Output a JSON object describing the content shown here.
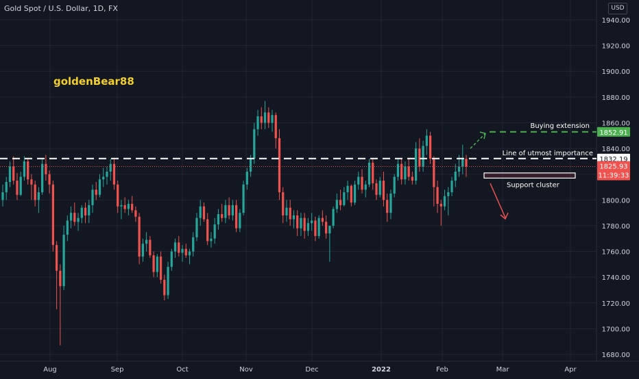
{
  "header": {
    "symbol_title": "Gold Spot / U.S. Dollar, 1D, FX",
    "currency": "USD"
  },
  "watermark": "goldenBear88",
  "colors": {
    "background": "#131722",
    "grid": "#232632",
    "bull": "#26a69a",
    "bear": "#ef5350",
    "text": "#d1d4dc",
    "white_line": "#ffffff",
    "green_line": "#4caf50",
    "watermark": "#f2d027",
    "arrow_red": "#ef5350",
    "arrow_green": "#4caf50"
  },
  "chart_data": {
    "type": "candlestick",
    "title": "Gold Spot / U.S. Dollar, 1D, FX",
    "y_axis_ticks": [
      "1940.00",
      "1920.00",
      "1900.00",
      "1880.00",
      "1860.00",
      "1840.00",
      "1820.00",
      "1800.00",
      "1780.00",
      "1760.00",
      "1740.00",
      "1720.00",
      "1700.00",
      "1680.00"
    ],
    "x_axis_ticks": [
      "Aug",
      "Sep",
      "Oct",
      "Nov",
      "Dec",
      "2022",
      "Feb",
      "Mar",
      "Apr"
    ],
    "ylim": [
      1675,
      1950
    ],
    "grid": true,
    "candles_ohlc": [
      [
        1800,
        1812,
        1795,
        1806
      ],
      [
        1806,
        1818,
        1800,
        1814
      ],
      [
        1814,
        1830,
        1810,
        1826
      ],
      [
        1826,
        1834,
        1812,
        1815
      ],
      [
        1815,
        1821,
        1800,
        1804
      ],
      [
        1804,
        1822,
        1803,
        1818
      ],
      [
        1818,
        1834,
        1815,
        1830
      ],
      [
        1830,
        1832,
        1812,
        1816
      ],
      [
        1816,
        1820,
        1800,
        1812
      ],
      [
        1812,
        1815,
        1795,
        1800
      ],
      [
        1800,
        1810,
        1790,
        1806
      ],
      [
        1806,
        1832,
        1804,
        1828
      ],
      [
        1828,
        1835,
        1815,
        1820
      ],
      [
        1820,
        1823,
        1805,
        1812
      ],
      [
        1812,
        1815,
        1760,
        1765
      ],
      [
        1765,
        1768,
        1715,
        1745
      ],
      [
        1745,
        1750,
        1687,
        1733
      ],
      [
        1733,
        1780,
        1730,
        1773
      ],
      [
        1773,
        1788,
        1768,
        1784
      ],
      [
        1784,
        1795,
        1778,
        1790
      ],
      [
        1790,
        1798,
        1780,
        1783
      ],
      [
        1783,
        1790,
        1776,
        1786
      ],
      [
        1786,
        1796,
        1782,
        1794
      ],
      [
        1794,
        1798,
        1782,
        1788
      ],
      [
        1788,
        1800,
        1782,
        1796
      ],
      [
        1796,
        1812,
        1790,
        1808
      ],
      [
        1808,
        1814,
        1800,
        1804
      ],
      [
        1804,
        1820,
        1802,
        1816
      ],
      [
        1816,
        1825,
        1810,
        1818
      ],
      [
        1818,
        1826,
        1812,
        1822
      ],
      [
        1822,
        1832,
        1815,
        1828
      ],
      [
        1828,
        1832,
        1808,
        1812
      ],
      [
        1812,
        1815,
        1790,
        1795
      ],
      [
        1795,
        1800,
        1785,
        1796
      ],
      [
        1796,
        1802,
        1790,
        1793
      ],
      [
        1793,
        1800,
        1788,
        1797
      ],
      [
        1797,
        1803,
        1790,
        1792
      ],
      [
        1792,
        1795,
        1783,
        1787
      ],
      [
        1787,
        1790,
        1750,
        1756
      ],
      [
        1756,
        1770,
        1752,
        1766
      ],
      [
        1766,
        1775,
        1760,
        1769
      ],
      [
        1769,
        1772,
        1755,
        1757
      ],
      [
        1757,
        1760,
        1740,
        1744
      ],
      [
        1744,
        1758,
        1740,
        1756
      ],
      [
        1756,
        1760,
        1735,
        1738
      ],
      [
        1738,
        1742,
        1722,
        1726
      ],
      [
        1726,
        1752,
        1723,
        1748
      ],
      [
        1748,
        1762,
        1745,
        1760
      ],
      [
        1760,
        1770,
        1755,
        1767
      ],
      [
        1767,
        1772,
        1756,
        1759
      ],
      [
        1759,
        1765,
        1752,
        1762
      ],
      [
        1762,
        1766,
        1755,
        1757
      ],
      [
        1757,
        1762,
        1750,
        1760
      ],
      [
        1760,
        1775,
        1756,
        1771
      ],
      [
        1771,
        1790,
        1768,
        1786
      ],
      [
        1786,
        1800,
        1780,
        1795
      ],
      [
        1795,
        1798,
        1783,
        1785
      ],
      [
        1785,
        1790,
        1765,
        1768
      ],
      [
        1768,
        1775,
        1763,
        1770
      ],
      [
        1770,
        1786,
        1766,
        1781
      ],
      [
        1781,
        1793,
        1777,
        1789
      ],
      [
        1789,
        1797,
        1783,
        1786
      ],
      [
        1786,
        1800,
        1782,
        1796
      ],
      [
        1796,
        1802,
        1785,
        1788
      ],
      [
        1788,
        1800,
        1784,
        1796
      ],
      [
        1796,
        1800,
        1775,
        1778
      ],
      [
        1778,
        1793,
        1775,
        1790
      ],
      [
        1790,
        1815,
        1788,
        1812
      ],
      [
        1812,
        1825,
        1808,
        1822
      ],
      [
        1822,
        1835,
        1818,
        1832
      ],
      [
        1832,
        1860,
        1828,
        1855
      ],
      [
        1855,
        1870,
        1850,
        1865
      ],
      [
        1865,
        1872,
        1855,
        1860
      ],
      [
        1860,
        1877,
        1855,
        1868
      ],
      [
        1868,
        1872,
        1856,
        1860
      ],
      [
        1860,
        1870,
        1853,
        1866
      ],
      [
        1866,
        1868,
        1840,
        1848
      ],
      [
        1848,
        1855,
        1800,
        1806
      ],
      [
        1806,
        1810,
        1782,
        1788
      ],
      [
        1788,
        1800,
        1783,
        1794
      ],
      [
        1794,
        1800,
        1780,
        1785
      ],
      [
        1785,
        1792,
        1778,
        1788
      ],
      [
        1788,
        1792,
        1772,
        1778
      ],
      [
        1778,
        1790,
        1772,
        1786
      ],
      [
        1786,
        1790,
        1770,
        1776
      ],
      [
        1776,
        1786,
        1772,
        1782
      ],
      [
        1782,
        1790,
        1776,
        1784
      ],
      [
        1784,
        1787,
        1768,
        1772
      ],
      [
        1772,
        1788,
        1770,
        1786
      ],
      [
        1786,
        1792,
        1780,
        1783
      ],
      [
        1783,
        1788,
        1770,
        1774
      ],
      [
        1774,
        1778,
        1752,
        1780
      ],
      [
        1780,
        1795,
        1778,
        1793
      ],
      [
        1793,
        1805,
        1790,
        1800
      ],
      [
        1800,
        1808,
        1792,
        1796
      ],
      [
        1796,
        1810,
        1795,
        1806
      ],
      [
        1806,
        1815,
        1800,
        1811
      ],
      [
        1811,
        1812,
        1795,
        1798
      ],
      [
        1798,
        1815,
        1796,
        1812
      ],
      [
        1812,
        1822,
        1808,
        1818
      ],
      [
        1818,
        1824,
        1805,
        1808
      ],
      [
        1808,
        1815,
        1802,
        1812
      ],
      [
        1812,
        1832,
        1810,
        1829
      ],
      [
        1829,
        1832,
        1808,
        1813
      ],
      [
        1813,
        1816,
        1800,
        1804
      ],
      [
        1804,
        1818,
        1802,
        1815
      ],
      [
        1815,
        1822,
        1795,
        1800
      ],
      [
        1800,
        1805,
        1783,
        1790
      ],
      [
        1790,
        1808,
        1785,
        1805
      ],
      [
        1805,
        1820,
        1802,
        1818
      ],
      [
        1818,
        1832,
        1815,
        1828
      ],
      [
        1828,
        1832,
        1812,
        1816
      ],
      [
        1816,
        1830,
        1812,
        1826
      ],
      [
        1826,
        1832,
        1815,
        1818
      ],
      [
        1818,
        1822,
        1812,
        1815
      ],
      [
        1815,
        1845,
        1812,
        1840
      ],
      [
        1840,
        1848,
        1822,
        1826
      ],
      [
        1826,
        1846,
        1822,
        1842
      ],
      [
        1842,
        1855,
        1835,
        1850
      ],
      [
        1850,
        1853,
        1828,
        1832
      ],
      [
        1832,
        1834,
        1795,
        1810
      ],
      [
        1810,
        1815,
        1790,
        1797
      ],
      [
        1797,
        1800,
        1780,
        1795
      ],
      [
        1795,
        1808,
        1792,
        1803
      ],
      [
        1803,
        1810,
        1788,
        1806
      ],
      [
        1806,
        1818,
        1803,
        1815
      ],
      [
        1815,
        1828,
        1810,
        1822
      ],
      [
        1822,
        1835,
        1818,
        1826
      ],
      [
        1826,
        1843,
        1820,
        1832
      ],
      [
        1832,
        1835,
        1818,
        1826
      ]
    ],
    "levels": [
      {
        "label": "Line of utmost importance",
        "price": "1832.19",
        "style": "white-dashed"
      },
      {
        "label": "Buying extension",
        "price": "1852.91",
        "style": "green-dashed"
      }
    ],
    "zones": [
      {
        "label": "Support cluster",
        "from": 1817,
        "to": 1821
      }
    ],
    "last_price": {
      "price": "1825.93",
      "countdown": "11:39:33"
    }
  },
  "annotations": {
    "line_utmost_label": "Line of utmost importance",
    "buying_extension_label": "Buying extension",
    "support_cluster_label": "Support cluster"
  },
  "price_tags": {
    "white": "1832.19",
    "green": "1852.91",
    "current": "1825.93",
    "countdown": "11:39:33"
  }
}
